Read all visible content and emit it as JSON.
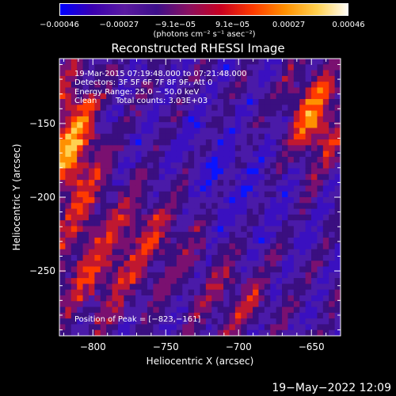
{
  "chart_data": {
    "type": "heatmap",
    "title": "Reconstructed RHESSI Image",
    "xlabel": "Heliocentric X (arcsec)",
    "ylabel": "Heliocentric Y (arcsec)",
    "xlim": [
      -823,
      -630
    ],
    "ylim": [
      -294,
      -106
    ],
    "xticks": [
      -800,
      -750,
      -700,
      -650
    ],
    "xtick_labels": [
      "−800",
      "−750",
      "−700",
      "−650"
    ],
    "yticks": [
      -150,
      -200,
      -250
    ],
    "ytick_labels": [
      "−150",
      "−200",
      "−250"
    ],
    "colorbar": {
      "ticks": [
        -0.00046,
        -0.00027,
        -9.1e-05,
        9.1e-05,
        0.00027,
        0.00046
      ],
      "tick_labels": [
        "−0.00046",
        "−0.00027",
        "−9.1e−05",
        "9.1e−05",
        "0.00027",
        "0.00046"
      ],
      "unit": "(photons cm⁻² s⁻¹ asec⁻²)",
      "colors": [
        "#0000ff",
        "#3a00b0",
        "#5a1aa0",
        "#3d0f8a",
        "#8a1060",
        "#c80020",
        "#ff3a00",
        "#ff9000",
        "#ffd050",
        "#ffffff"
      ]
    },
    "annotations": {
      "time_range": "19-Mar-2015 07:19:48.000 to 07:21:48.000",
      "detectors": "Detectors: 3F 5F 6F 7F 8F 9F, Att 0",
      "energy_range": "Energy Range: 25.0 − 50.0 keV",
      "method": "Clean",
      "total_counts": "Total counts: 3.03E+03",
      "peak": "Position of Peak = [−823,−161]"
    }
  },
  "footer": {
    "timestamp": "19−May−2022 12:09"
  }
}
